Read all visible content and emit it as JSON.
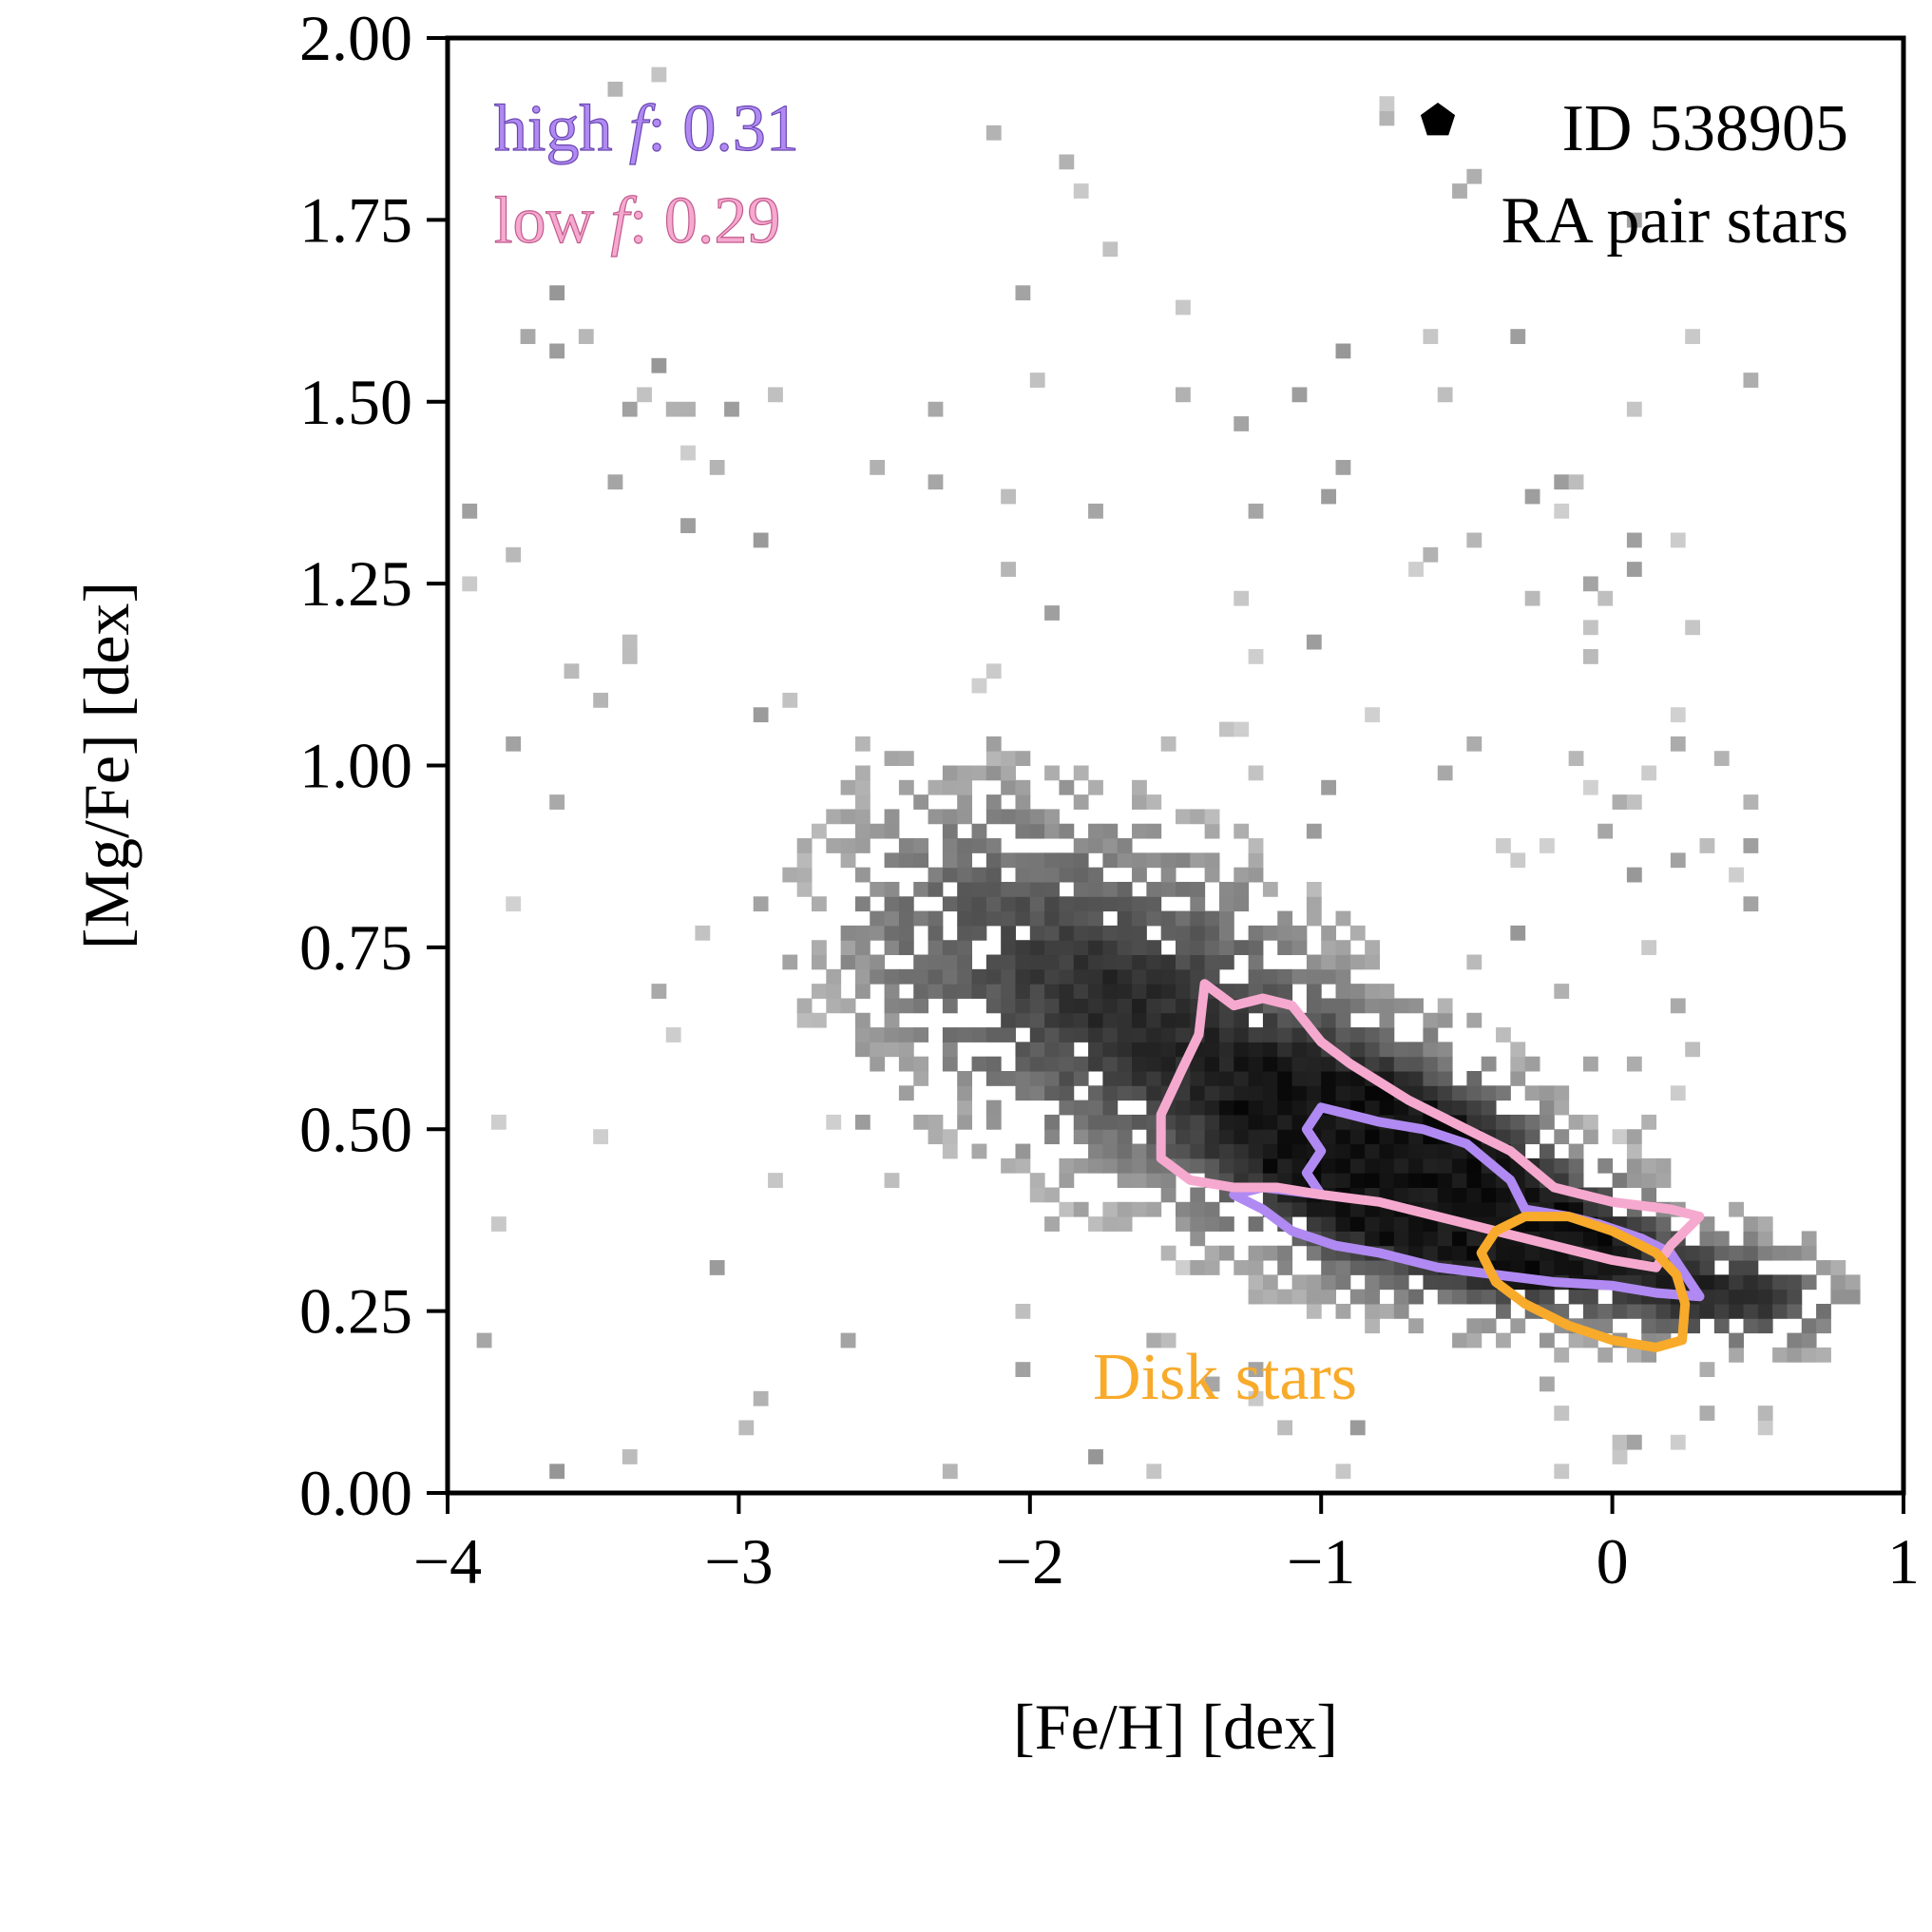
{
  "chart_data": {
    "type": "heatmap",
    "title": "",
    "xlabel": "[Fe/H] [dex]",
    "ylabel": "[Mg/Fe] [dex]",
    "xlim": [
      -4,
      1
    ],
    "ylim": [
      0,
      2
    ],
    "xticks": [
      {
        "value": -4,
        "label": "−4"
      },
      {
        "value": -3,
        "label": "−3"
      },
      {
        "value": -2,
        "label": "−2"
      },
      {
        "value": -1,
        "label": "−1"
      },
      {
        "value": 0,
        "label": "0"
      },
      {
        "value": 1,
        "label": "1"
      }
    ],
    "yticks": [
      {
        "value": 0,
        "label": "0.00"
      },
      {
        "value": 0.25,
        "label": "0.25"
      },
      {
        "value": 0.5,
        "label": "0.50"
      },
      {
        "value": 0.75,
        "label": "0.75"
      },
      {
        "value": 1.0,
        "label": "1.00"
      },
      {
        "value": 1.25,
        "label": "1.25"
      },
      {
        "value": 1.5,
        "label": "1.50"
      },
      {
        "value": 1.75,
        "label": "1.75"
      },
      {
        "value": 2.0,
        "label": "2.00"
      }
    ],
    "grid": false,
    "histogram": {
      "colormap": "greys",
      "bin_width_x": 0.05,
      "bin_width_y": 0.02,
      "density_ridge": [
        {
          "x": -2.2,
          "y": 0.78,
          "sx": 0.35,
          "sy": 0.14,
          "w": 0.35
        },
        {
          "x": -1.6,
          "y": 0.66,
          "sx": 0.35,
          "sy": 0.13,
          "w": 0.6
        },
        {
          "x": -1.0,
          "y": 0.5,
          "sx": 0.3,
          "sy": 0.1,
          "w": 0.9
        },
        {
          "x": -0.6,
          "y": 0.42,
          "sx": 0.25,
          "sy": 0.08,
          "w": 1.0
        },
        {
          "x": -0.2,
          "y": 0.34,
          "sx": 0.25,
          "sy": 0.06,
          "w": 0.9
        },
        {
          "x": 0.3,
          "y": 0.28,
          "sx": 0.22,
          "sy": 0.05,
          "w": 0.6
        },
        {
          "x": 0.6,
          "y": 0.26,
          "sx": 0.15,
          "sy": 0.04,
          "w": 0.3
        }
      ],
      "outlier_region": {
        "x": [
          -4,
          0.5
        ],
        "y": [
          0.05,
          1.95
        ]
      }
    },
    "series": [
      {
        "name": "high f",
        "kind": "contour",
        "color": "#b08af2",
        "points": [
          [
            -1.3,
            0.41
          ],
          [
            -1.2,
            0.39
          ],
          [
            -1.1,
            0.36
          ],
          [
            -0.95,
            0.34
          ],
          [
            -0.8,
            0.33
          ],
          [
            -0.6,
            0.31
          ],
          [
            -0.4,
            0.3
          ],
          [
            -0.2,
            0.29
          ],
          [
            0.0,
            0.285
          ],
          [
            0.15,
            0.275
          ],
          [
            0.3,
            0.27
          ],
          [
            0.2,
            0.33
          ],
          [
            0.1,
            0.35
          ],
          [
            -0.05,
            0.37
          ],
          [
            -0.15,
            0.38
          ],
          [
            -0.3,
            0.39
          ],
          [
            -0.35,
            0.43
          ],
          [
            -0.5,
            0.48
          ],
          [
            -0.65,
            0.5
          ],
          [
            -0.8,
            0.51
          ],
          [
            -0.9,
            0.52
          ],
          [
            -1.0,
            0.53
          ],
          [
            -1.05,
            0.5
          ],
          [
            -1.0,
            0.47
          ],
          [
            -1.05,
            0.44
          ],
          [
            -1.0,
            0.41
          ],
          [
            -1.2,
            0.42
          ],
          [
            -1.3,
            0.41
          ]
        ]
      },
      {
        "name": "low f",
        "kind": "contour",
        "color": "#f6a9cf",
        "points": [
          [
            -1.55,
            0.46
          ],
          [
            -1.45,
            0.43
          ],
          [
            -1.3,
            0.42
          ],
          [
            -1.15,
            0.42
          ],
          [
            -1.0,
            0.41
          ],
          [
            -0.8,
            0.4
          ],
          [
            -0.6,
            0.38
          ],
          [
            -0.4,
            0.36
          ],
          [
            -0.2,
            0.34
          ],
          [
            0.0,
            0.32
          ],
          [
            0.15,
            0.31
          ],
          [
            0.2,
            0.34
          ],
          [
            0.3,
            0.38
          ],
          [
            0.2,
            0.39
          ],
          [
            0.0,
            0.4
          ],
          [
            -0.2,
            0.42
          ],
          [
            -0.35,
            0.47
          ],
          [
            -0.5,
            0.5
          ],
          [
            -0.7,
            0.54
          ],
          [
            -0.9,
            0.59
          ],
          [
            -1.0,
            0.62
          ],
          [
            -1.1,
            0.67
          ],
          [
            -1.2,
            0.68
          ],
          [
            -1.3,
            0.67
          ],
          [
            -1.4,
            0.7
          ],
          [
            -1.42,
            0.63
          ],
          [
            -1.48,
            0.58
          ],
          [
            -1.55,
            0.52
          ],
          [
            -1.55,
            0.46
          ]
        ]
      },
      {
        "name": "Disk stars",
        "kind": "contour",
        "color": "#f8aa2a",
        "points": [
          [
            -0.45,
            0.33
          ],
          [
            -0.4,
            0.36
          ],
          [
            -0.3,
            0.38
          ],
          [
            -0.15,
            0.38
          ],
          [
            0.0,
            0.36
          ],
          [
            0.15,
            0.33
          ],
          [
            0.22,
            0.3
          ],
          [
            0.25,
            0.26
          ],
          [
            0.24,
            0.21
          ],
          [
            0.15,
            0.2
          ],
          [
            0.0,
            0.21
          ],
          [
            -0.15,
            0.23
          ],
          [
            -0.3,
            0.26
          ],
          [
            -0.4,
            0.29
          ],
          [
            -0.45,
            0.33
          ]
        ]
      }
    ],
    "annotations": {
      "high_label": "high",
      "high_symbol": "f",
      "high_value": ": 0.31",
      "low_label": "low",
      "low_symbol": "f",
      "low_value": ": 0.29",
      "id_text": "ID 538905",
      "subtitle": "RA pair stars",
      "disk_label": "Disk stars"
    },
    "colors": {
      "high": "#b08af2",
      "low": "#f6a9cf",
      "disk": "#f8aa2a",
      "axes": "#000000"
    },
    "marker_icon": "pentagon-icon"
  }
}
